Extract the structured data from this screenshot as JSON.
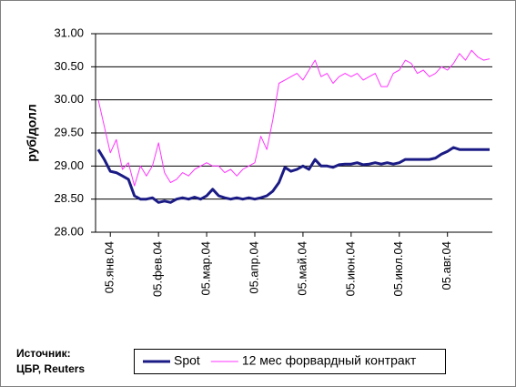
{
  "chart_data": {
    "type": "line",
    "y_label": "руб/долл",
    "source": [
      "Источник:",
      "ЦБР, Reuters"
    ],
    "categories": [
      null,
      null,
      "05.янв.04",
      null,
      null,
      null,
      null,
      null,
      null,
      null,
      "05.фев.04",
      null,
      null,
      null,
      null,
      null,
      null,
      null,
      "05.мар.04",
      null,
      null,
      null,
      null,
      null,
      null,
      null,
      "05.апр.04",
      null,
      null,
      null,
      null,
      null,
      null,
      null,
      "05.май.04",
      null,
      null,
      null,
      null,
      null,
      null,
      null,
      "05.июн.04",
      null,
      null,
      null,
      null,
      null,
      null,
      null,
      "05.июл.04",
      null,
      null,
      null,
      null,
      null,
      null,
      null,
      "05.авг.04",
      null,
      null,
      null,
      null,
      null,
      null,
      null
    ],
    "series": [
      {
        "name": "Spot",
        "color": "#1b1b85",
        "width": 3,
        "values": [
          29.25,
          29.1,
          28.92,
          28.9,
          28.85,
          28.8,
          28.55,
          28.5,
          28.5,
          28.52,
          28.45,
          28.47,
          28.45,
          28.5,
          28.52,
          28.5,
          28.53,
          28.5,
          28.55,
          28.65,
          28.55,
          28.52,
          28.5,
          28.52,
          28.5,
          28.52,
          28.5,
          28.52,
          28.55,
          28.62,
          28.75,
          28.98,
          28.92,
          28.95,
          29.0,
          28.95,
          29.1,
          29.0,
          29.0,
          28.98,
          29.02,
          29.03,
          29.03,
          29.05,
          29.02,
          29.03,
          29.05,
          29.03,
          29.05,
          29.03,
          29.05,
          29.1,
          29.1,
          29.1,
          29.1,
          29.1,
          29.12,
          29.18,
          29.22,
          29.28,
          29.25,
          29.25,
          29.25,
          29.25,
          29.25,
          29.25
        ]
      },
      {
        "name": "12 мес форвардный контракт",
        "color": "#ff33ff",
        "width": 1,
        "values": [
          30.0,
          29.6,
          29.2,
          29.4,
          28.95,
          29.05,
          28.7,
          29.0,
          28.85,
          29.0,
          29.35,
          28.9,
          28.75,
          28.8,
          28.9,
          28.85,
          28.95,
          29.0,
          29.05,
          29.0,
          29.0,
          28.9,
          28.95,
          28.85,
          28.95,
          29.0,
          29.05,
          29.45,
          29.25,
          29.7,
          30.25,
          30.3,
          30.35,
          30.4,
          30.3,
          30.45,
          30.6,
          30.35,
          30.4,
          30.25,
          30.35,
          30.4,
          30.35,
          30.4,
          30.3,
          30.35,
          30.4,
          30.2,
          30.2,
          30.4,
          30.45,
          30.6,
          30.55,
          30.4,
          30.45,
          30.35,
          30.4,
          30.5,
          30.45,
          30.55,
          30.7,
          30.6,
          30.75,
          30.65,
          30.6,
          30.62
        ]
      }
    ],
    "ylim": [
      28,
      31
    ],
    "yticks": [
      {
        "value": 28,
        "label": "28.00"
      },
      {
        "value": 28.5,
        "label": "28.50"
      },
      {
        "value": 29,
        "label": "29.00"
      },
      {
        "value": 29.5,
        "label": "29.50"
      },
      {
        "value": 30,
        "label": "30.00"
      },
      {
        "value": 30.5,
        "label": "30.50"
      },
      {
        "value": 31,
        "label": "31.00"
      }
    ],
    "grid": true,
    "legend": "bottom"
  }
}
